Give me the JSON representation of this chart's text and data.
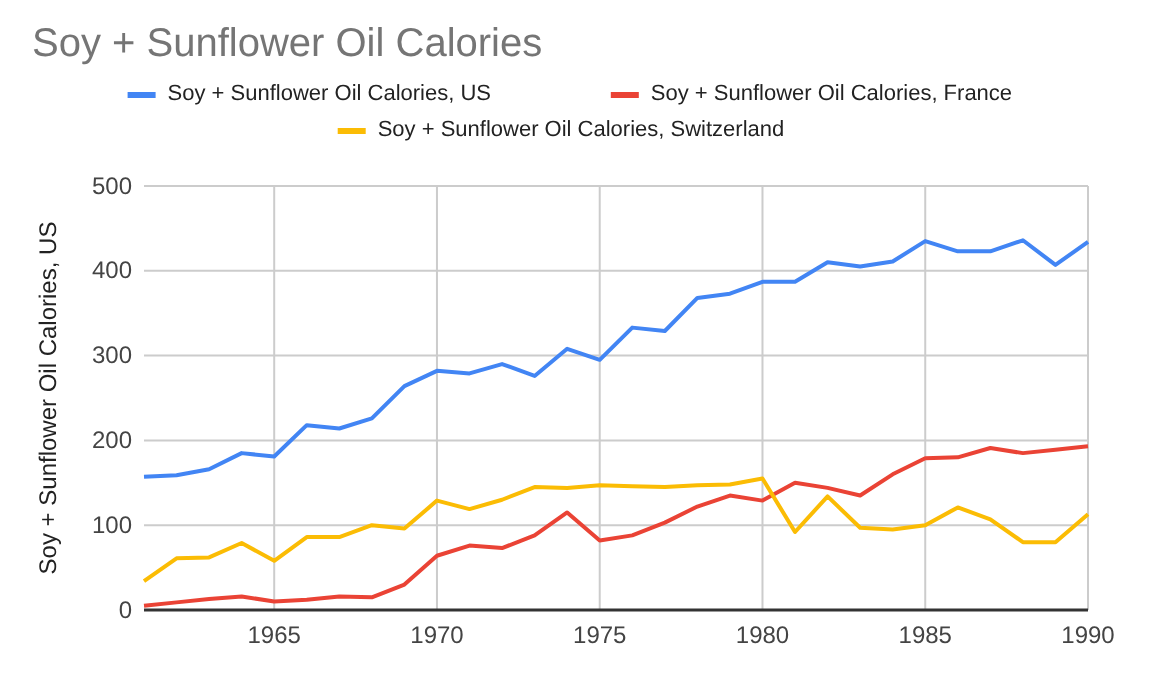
{
  "chart_data": {
    "type": "line",
    "title": "Soy + Sunflower Oil Calories",
    "ylabel": "Soy + Sunflower Oil Calories, US",
    "x": [
      1961,
      1962,
      1963,
      1964,
      1965,
      1966,
      1967,
      1968,
      1969,
      1970,
      1971,
      1972,
      1973,
      1974,
      1975,
      1976,
      1977,
      1978,
      1979,
      1980,
      1981,
      1982,
      1983,
      1984,
      1985,
      1986,
      1987,
      1988,
      1989,
      1990
    ],
    "series": [
      {
        "name": "Soy + Sunflower Oil Calories, US",
        "color": "#4285f4",
        "values": [
          157,
          159,
          166,
          185,
          181,
          218,
          214,
          226,
          264,
          282,
          279,
          290,
          276,
          308,
          295,
          333,
          329,
          368,
          373,
          387,
          387,
          410,
          405,
          411,
          435,
          423,
          423,
          436,
          407,
          434
        ]
      },
      {
        "name": "Soy + Sunflower Oil Calories, France",
        "color": "#ea4335",
        "values": [
          5,
          9,
          13,
          16,
          10,
          12,
          16,
          15,
          30,
          64,
          76,
          73,
          88,
          115,
          82,
          88,
          103,
          122,
          135,
          129,
          150,
          144,
          135,
          160,
          179,
          180,
          191,
          185,
          189,
          193
        ]
      },
      {
        "name": "Soy + Sunflower Oil Calories, Switzerland",
        "color": "#fbbc04",
        "values": [
          34,
          61,
          62,
          79,
          58,
          86,
          86,
          100,
          96,
          129,
          119,
          130,
          145,
          144,
          147,
          146,
          145,
          147,
          148,
          155,
          92,
          134,
          97,
          95,
          100,
          121,
          107,
          80,
          80,
          113
        ]
      }
    ],
    "xlim": [
      1961,
      1990
    ],
    "xticks": [
      1965,
      1970,
      1975,
      1980,
      1985,
      1990
    ],
    "ylim": [
      0,
      500
    ],
    "yticks": [
      0,
      100,
      200,
      300,
      400,
      500
    ],
    "grid": true,
    "legend": "top",
    "marker": "none",
    "line_style": "solid"
  }
}
